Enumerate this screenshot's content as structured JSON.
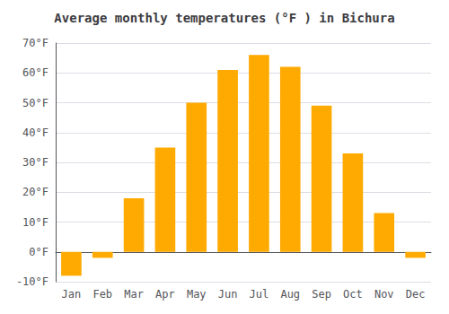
{
  "chart_data": {
    "type": "bar",
    "title": "Average monthly temperatures (°F ) in Bichura",
    "categories": [
      "Jan",
      "Feb",
      "Mar",
      "Apr",
      "May",
      "Jun",
      "Jul",
      "Aug",
      "Sep",
      "Oct",
      "Nov",
      "Dec"
    ],
    "values": [
      -8,
      -2,
      18,
      35,
      50,
      61,
      66,
      62,
      49,
      33,
      13,
      -2
    ],
    "color": "#FFAA00",
    "ylim": [
      -10,
      70
    ],
    "yticks": [
      {
        "value": -10,
        "label": "-10°F"
      },
      {
        "value": 0,
        "label": "0°F"
      },
      {
        "value": 10,
        "label": "10°F"
      },
      {
        "value": 20,
        "label": "20°F"
      },
      {
        "value": 30,
        "label": "30°F"
      },
      {
        "value": 40,
        "label": "40°F"
      },
      {
        "value": 50,
        "label": "50°F"
      },
      {
        "value": 60,
        "label": "60°F"
      },
      {
        "value": 70,
        "label": "70°F"
      }
    ],
    "grid": true
  }
}
